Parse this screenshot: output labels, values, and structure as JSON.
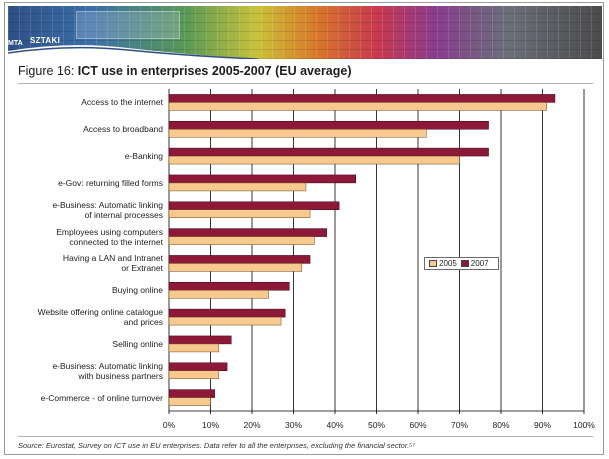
{
  "banner": {
    "logo_left": "MTA",
    "logo_right": "SZTAKI"
  },
  "figure": {
    "number": "Figure 16:",
    "title": "ICT use in enterprises 2005-2007 (EU average)",
    "source": "Source: Eurostat, Survey on ICT use in EU enterprises. Data refer to all the enterprises, excluding the financial sector.⁵⁷"
  },
  "colors": {
    "series_2005": "#f7c98e",
    "series_2007": "#8e1838",
    "grid": "#000000"
  },
  "chart_data": {
    "type": "bar",
    "orientation": "horizontal",
    "title": "ICT use in enterprises 2005-2007 (EU average)",
    "categories": [
      "Access to the internet",
      "Access to broadband",
      "e-Banking",
      "e-Gov: returning filled forms",
      "e-Business: Automatic linking\nof internal processes",
      "Employees using computers\nconnected to the internet",
      "Having a LAN and Intranet\nor Extranet",
      "Buying online",
      "Website offering online catalogue\nand prices",
      "Selling online",
      "e-Business: Automatic linking\nwith business partners",
      "e-Commerce - of online turnover"
    ],
    "series": [
      {
        "name": "2005",
        "values": [
          91,
          62,
          70,
          33,
          34,
          35,
          32,
          24,
          27,
          12,
          12,
          10
        ]
      },
      {
        "name": "2007",
        "values": [
          93,
          77,
          77,
          45,
          41,
          38,
          34,
          29,
          28,
          15,
          14,
          11
        ]
      }
    ],
    "xlim": [
      0,
      100
    ],
    "x_ticks": [
      "0%",
      "10%",
      "20%",
      "30%",
      "40%",
      "50%",
      "60%",
      "70%",
      "80%",
      "90%",
      "100%"
    ],
    "grid": true,
    "legend_position": "middle-right"
  }
}
